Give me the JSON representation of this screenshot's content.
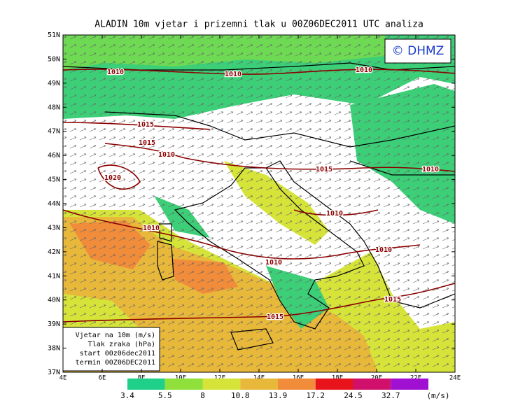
{
  "title": "ALADIN 10m vjetar i prizemni tlak u 00Z06DEC2011 UTC analiza",
  "logo": "© DHMZ",
  "lat_labels": [
    "51N",
    "50N",
    "49N",
    "48N",
    "47N",
    "46N",
    "45N",
    "44N",
    "43N",
    "42N",
    "41N",
    "40N",
    "39N",
    "38N",
    "37N"
  ],
  "lon_labels": [
    "4E",
    "6E",
    "8E",
    "10E",
    "12E",
    "14E",
    "16E",
    "18E",
    "20E",
    "22E",
    "24E"
  ],
  "isobar_labels": [
    "1010",
    "1010",
    "1010",
    "1015",
    "1015",
    "1010",
    "1020",
    "1015",
    "1010",
    "1010",
    "1010",
    "1010",
    "1010",
    "1015",
    "1015"
  ],
  "legend": {
    "lines": [
      "Vjetar na 10m (m/s)",
      "Tlak zraka (hPa)",
      "start 00z06dec2011",
      "termin 00Z06DEC2011"
    ]
  },
  "colorbar": {
    "values": [
      3.4,
      5.5,
      8,
      10.8,
      13.9,
      17.2,
      24.5,
      32.7
    ],
    "unit": "(m/s)",
    "colors": [
      "#1fd08a",
      "#8fe03a",
      "#d6e43a",
      "#e8b83a",
      "#f08c3a",
      "#e8141c",
      "#d0106a",
      "#a010d0"
    ]
  }
}
